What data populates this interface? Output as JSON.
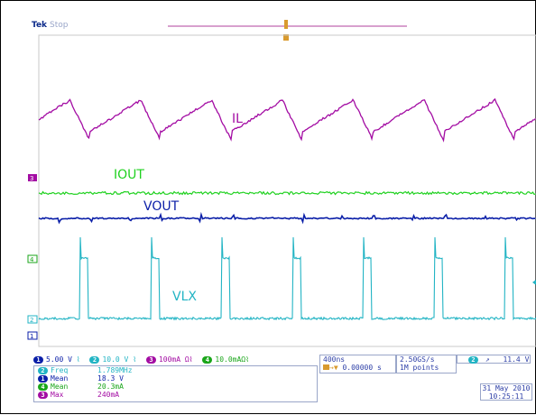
{
  "header": {
    "brand": "Tek",
    "state": "Stop"
  },
  "colors": {
    "ch1": "#0b1fa8",
    "ch2": "#22b4c4",
    "ch3": "#a30ca3",
    "ch4": "#1aa61a",
    "ui_blue": "#2d3fa7"
  },
  "channel_markers": {
    "ch3": "3",
    "ch4": "4",
    "ch2": "2",
    "ch1": "1"
  },
  "trace_labels": {
    "il": "IL",
    "iout": "IOUT",
    "vout": "VOUT",
    "vlx": "VLX"
  },
  "channel_settings": [
    {
      "badge": "1",
      "value": "5.00 V",
      "bw": "⌇",
      "color": "#0b1fa8"
    },
    {
      "badge": "2",
      "value": "10.0 V",
      "bw": "⌇",
      "color": "#22b4c4"
    },
    {
      "badge": "3",
      "value": "100mA Ω⌇",
      "bw": "",
      "color": "#a30ca3"
    },
    {
      "badge": "4",
      "value": "10.0mAΩ⌇",
      "bw": "",
      "color": "#1aa61a"
    }
  ],
  "measurements": [
    {
      "badge": "2",
      "label": "Freq",
      "value": "1.789MHz",
      "color": "#22b4c4"
    },
    {
      "badge": "1",
      "label": "Mean",
      "value": "18.3 V",
      "color": "#0b1fa8"
    },
    {
      "badge": "4",
      "label": "Mean",
      "value": "20.3mA",
      "color": "#1aa61a"
    },
    {
      "badge": "3",
      "label": "Max",
      "value": "240mA",
      "color": "#a30ca3"
    }
  ],
  "timebase": {
    "scale": "400ns",
    "offset": "0.00000 s"
  },
  "acquisition": {
    "rate": "2.50GS/s",
    "points": "1M points"
  },
  "trigger": {
    "channel": "2",
    "slope": "↗",
    "level": "11.4 V"
  },
  "datetime": {
    "date": "31 May 2010",
    "time": "10:25:11"
  }
}
